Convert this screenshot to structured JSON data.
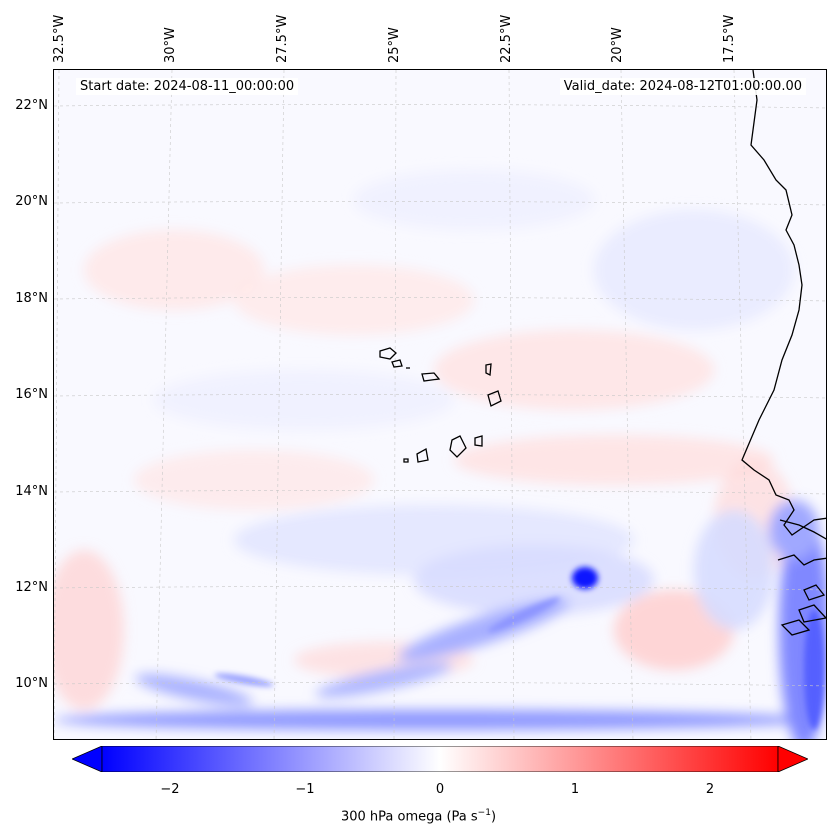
{
  "map": {
    "start_label": "Start date: 2024-08-11_00:00:00",
    "valid_label": "Valid_date: 2024-08-12T01:00:00.00",
    "lon_labels": [
      "32.5°W",
      "30°W",
      "27.5°W",
      "25°W",
      "22.5°W",
      "20°W",
      "17.5°W"
    ],
    "lat_labels": [
      "22°N",
      "20°N",
      "18°N",
      "16°N",
      "14°N",
      "12°N",
      "10°N"
    ],
    "variable": "300 hPa omega",
    "colormap": "bwr",
    "islands": "Cape Verde",
    "coastline": "West Africa"
  },
  "colorbar": {
    "ticks": [
      "−2",
      "−1",
      "0",
      "1",
      "2"
    ],
    "title_prefix": "300 hPa omega (Pa s",
    "title_exp": "−1",
    "title_suffix": ")",
    "vmin": -2.5,
    "vmax": 2.5,
    "neg_color": "#0000ff",
    "pos_color": "#ff0000"
  }
}
